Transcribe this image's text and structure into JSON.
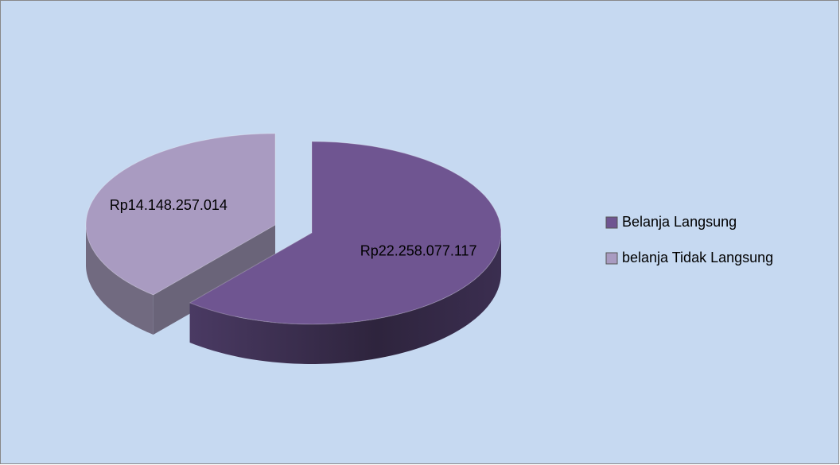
{
  "chart_data": {
    "type": "pie3d",
    "categories": [
      "Belanja Langsung",
      "belanja Tidak Langsung"
    ],
    "values": [
      22258077117,
      14148257014
    ],
    "value_labels": [
      "Rp22.258.077.117",
      "Rp14.148.257.014"
    ],
    "colors": [
      "#6f5591",
      "#a99bc1"
    ],
    "legend": "right"
  }
}
